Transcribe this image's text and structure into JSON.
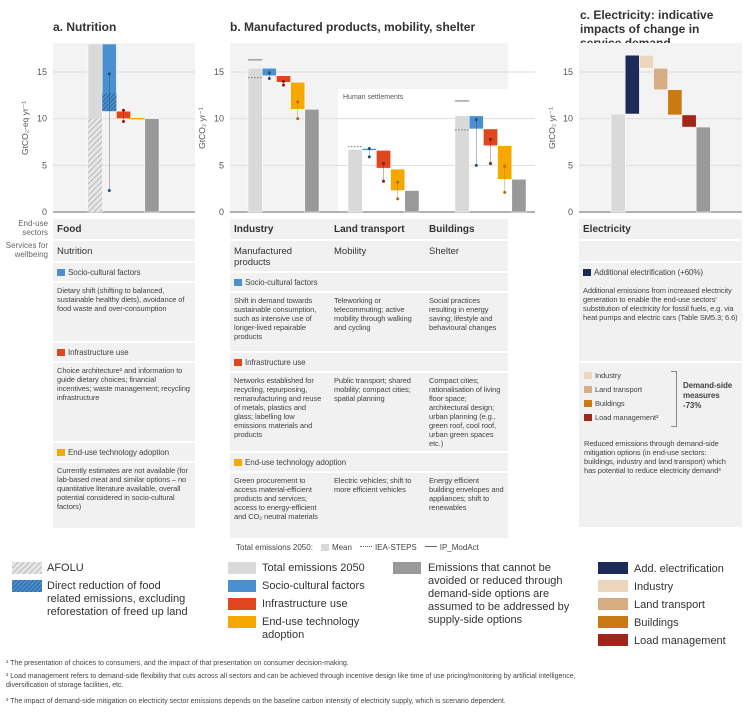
{
  "titles": {
    "a": "a. Nutrition",
    "b": "b. Manufactured products, mobility, shelter",
    "c": "c. Electricity: indicative impacts of change in service demand"
  },
  "side_labels": {
    "sectors": "End-use sectors",
    "services": "Services for wellbeing"
  },
  "colors": {
    "mean": "#d9d9d9",
    "socio": "#4a8fd0",
    "infra": "#e0461c",
    "eut": "#f7a800",
    "residual": "#999999",
    "electrification": "#1c2b58",
    "el_industry": "#ecd6bd",
    "el_land": "#d7ad84",
    "el_buildings": "#c97a14",
    "el_load": "#a3261a"
  },
  "chart_data": [
    {
      "type": "bar",
      "subtype": "waterfall",
      "panel": "a",
      "ylabel": "GtCO₂-eq yr⁻¹",
      "ylim": [
        0,
        18
      ],
      "yticks": [
        0,
        5,
        10,
        15
      ],
      "grid": true,
      "groups": [
        {
          "name": "Food",
          "bars": [
            {
              "kind": "mean",
              "from": 0,
              "to": 18,
              "afolu": 10
            },
            {
              "kind": "socio",
              "from": 18,
              "to": 10.8,
              "direct_reduction_hatch": [
                10.8,
                12.7
              ],
              "dots": [
                14.8,
                2.3
              ]
            },
            {
              "kind": "infra",
              "from": 10.8,
              "to": 10.0,
              "dots": [
                10.9,
                9.7
              ]
            },
            {
              "kind": "eut",
              "from": 10.0,
              "to": 10.0,
              "dots": []
            },
            {
              "kind": "residual",
              "from": 0,
              "to": 10.0
            }
          ]
        }
      ]
    },
    {
      "type": "bar",
      "subtype": "waterfall",
      "panel": "b",
      "ylabel": "GtCO₂ yr⁻¹",
      "ylim": [
        0,
        18
      ],
      "yticks": [
        0,
        5,
        10,
        15
      ],
      "grid": true,
      "inset_label": "Human settlements",
      "groups": [
        {
          "name": "Industry",
          "iea_steps": 14.4,
          "ip_modact": 16.3,
          "bars": [
            {
              "kind": "mean",
              "from": 0,
              "to": 15.4
            },
            {
              "kind": "socio",
              "from": 15.4,
              "to": 14.6,
              "dots": [
                14.9,
                14.3
              ]
            },
            {
              "kind": "infra",
              "from": 14.6,
              "to": 13.9,
              "dots": [
                14.0,
                13.6
              ]
            },
            {
              "kind": "eut",
              "from": 13.9,
              "to": 11.0,
              "dots": [
                11.8,
                10.0
              ]
            },
            {
              "kind": "residual",
              "from": 0,
              "to": 11.0
            }
          ]
        },
        {
          "name": "Land transport",
          "iea_steps": 7.0,
          "bars": [
            {
              "kind": "mean",
              "from": 0,
              "to": 6.7
            },
            {
              "kind": "socio",
              "from": 6.8,
              "to": 6.6,
              "dots": [
                6.8,
                5.9
              ]
            },
            {
              "kind": "infra",
              "from": 6.6,
              "to": 4.7,
              "dots": [
                5.2,
                3.3
              ]
            },
            {
              "kind": "eut",
              "from": 4.6,
              "to": 2.3,
              "dots": [
                3.2,
                1.4
              ]
            },
            {
              "kind": "residual",
              "from": 0,
              "to": 2.3
            }
          ]
        },
        {
          "name": "Buildings",
          "iea_steps": 8.8,
          "ip_modact": 11.9,
          "bars": [
            {
              "kind": "mean",
              "from": 0,
              "to": 10.3
            },
            {
              "kind": "socio",
              "from": 10.3,
              "to": 8.9,
              "dots": [
                9.9,
                5.0
              ]
            },
            {
              "kind": "infra",
              "from": 8.9,
              "to": 7.1,
              "dots": [
                7.8,
                5.2
              ]
            },
            {
              "kind": "eut",
              "from": 7.1,
              "to": 3.5,
              "dots": [
                4.9,
                2.1
              ]
            },
            {
              "kind": "residual",
              "from": 0,
              "to": 3.5
            }
          ]
        }
      ]
    },
    {
      "type": "bar",
      "subtype": "waterfall",
      "panel": "c",
      "ylabel": "GtCO₂ yr⁻¹",
      "ylim": [
        0,
        18
      ],
      "yticks": [
        0,
        5,
        10,
        15
      ],
      "grid": true,
      "groups": [
        {
          "name": "Electricity",
          "bars": [
            {
              "kind": "mean",
              "from": 0,
              "to": 10.5
            },
            {
              "kind": "electrification",
              "from": 10.5,
              "to": 16.8
            },
            {
              "kind": "el_industry",
              "from": 16.8,
              "to": 15.4
            },
            {
              "kind": "el_land",
              "from": 15.4,
              "to": 13.1
            },
            {
              "kind": "el_buildings",
              "from": 13.1,
              "to": 10.4
            },
            {
              "kind": "el_load",
              "from": 10.4,
              "to": 9.1
            },
            {
              "kind": "residual",
              "from": 0,
              "to": 9.1
            }
          ]
        }
      ]
    }
  ],
  "table_a": {
    "sector": "Food",
    "service": "Nutrition",
    "socio_label": "Socio-cultural factors",
    "socio": "Dietary shift (shifting to balanced, sustainable healthy diets), avoidance of food waste and over-consumption",
    "infra_label": "Infrastructure use",
    "infra": "Choice architecture¹ and information to guide dietary choices; financial incentives; waste management; recycling infrastructure",
    "eut_label": "End-use technology adoption",
    "eut": "Currently estimates are not available (for lab-based meat and similar options – no quantitative literature available, overall potential considered in socio-cultural factors)"
  },
  "table_b": {
    "socio_label": "Socio-cultural factors",
    "infra_label": "Infrastructure use",
    "eut_label": "End-use technology adoption",
    "columns": [
      {
        "sector": "Industry",
        "service": "Manufactured products",
        "socio": "Shift in demand towards sustainable consumption, such as intensive use of longer-lived repairable products",
        "infra": "Networks established for recycling, repurposing, remanufacturing and reuse of metals, plastics and glass; labelling low emissions materials and products",
        "eut": "Green procurement to access material-efficient products and services; access to energy-efficient and CO₂ neutral materials"
      },
      {
        "sector": "Land transport",
        "service": "Mobility",
        "socio": "Teleworking or telecommuting; active mobility through walking and cycling",
        "infra": "Public transport; shared mobility; compact cities; spatial planning",
        "eut": "Electric vehicles; shift to more efficient vehicles"
      },
      {
        "sector": "Buildings",
        "service": "Shelter",
        "socio": "Social practices resulting in energy saving; lifestyle and behavioural changes",
        "infra": "Compact cities; rationalisation of living floor space; architectural design; urban planning (e.g., green roof, cool roof, urban green spaces etc.)",
        "eut": "Energy efficient building envelopes and appliances; shift to renewables"
      }
    ]
  },
  "table_c": {
    "sector": "Electricity",
    "elec_label": "Additional electrification (+60%)",
    "elec": "Additional emissions from increased electricity generation to enable the end-use sectors' substitution of electricity for fossil fuels, e.g. via heat pumps and electric cars (Table SM5.3; 6.6)",
    "items": [
      "Industry",
      "Land transport",
      "Buildings",
      "Load management²"
    ],
    "demand_side": "Demand-side measures -73%",
    "reduced": "Reduced emissions through demand-side mitigation options (in end-use sectors: buildings, industry and land transport) which has potential to reduce electricity demand³"
  },
  "total_legend": {
    "label": "Total emissions 2050:",
    "mean": "Mean",
    "iea": "IEA-STEPS",
    "ip": "IP_ModAct"
  },
  "legend": {
    "afolu": "AFOLU",
    "direct": "Direct reduction of food related emissions, excluding reforestation of freed up land",
    "total": "Total emissions 2050",
    "socio": "Socio-cultural factors",
    "infra": "Infrastructure use",
    "eut": "End-use technology adoption",
    "residual": "Emissions that cannot be avoided or reduced through demand-side options are assumed to be addressed by supply-side options",
    "elec": "Add. electrification",
    "industry": "Industry",
    "land": "Land transport",
    "buildings": "Buildings",
    "load": "Load management"
  },
  "footnotes": [
    "¹ The presentation of choices to consumers, and the impact of that presentation on consumer decision-making.",
    "² Load management refers to demand-side flexibility that cuts across all sectors and can be achieved through incentive design like time of use pricing/monitoring by artificial intelligence, diversification of storage facilities, etc.",
    "³ The impact of demand-side mitigation on electricity sector emissions depends on the baseline carbon intensity of electricity supply, which is scenario dependent."
  ]
}
